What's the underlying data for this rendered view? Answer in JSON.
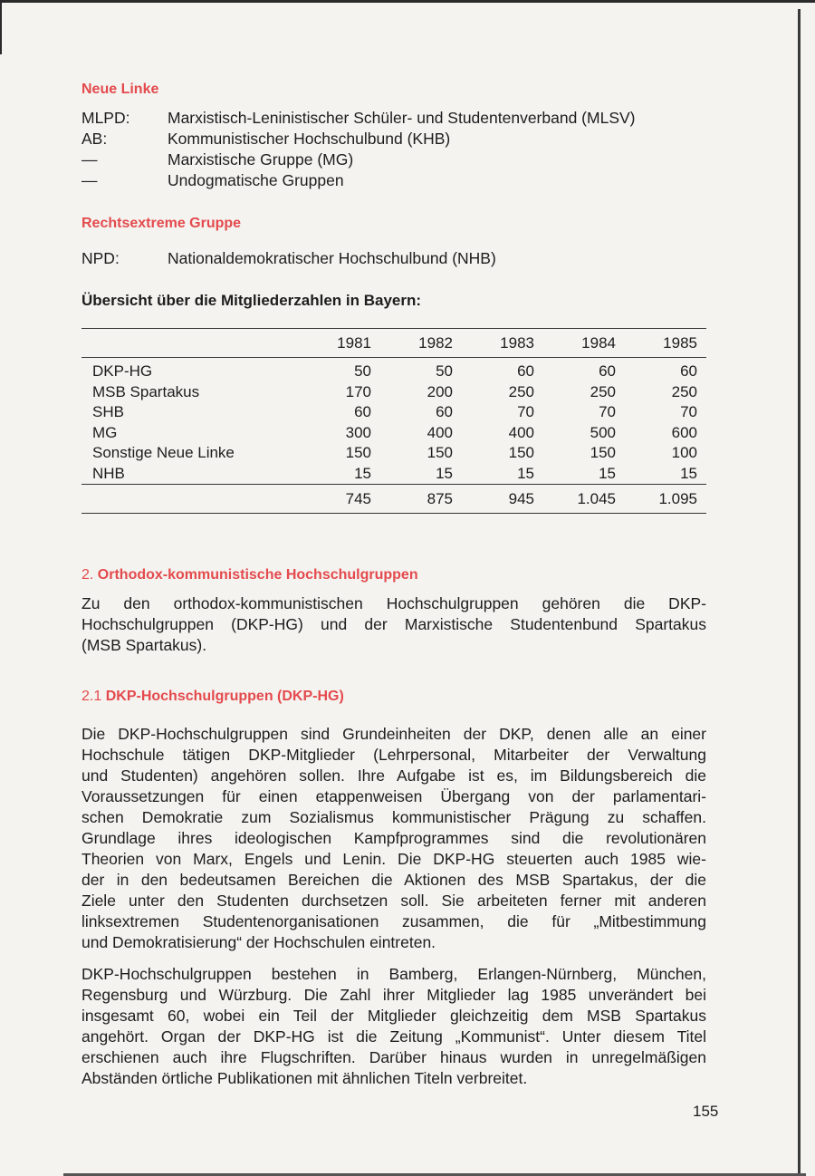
{
  "neue_linke": {
    "heading": "Neue Linke",
    "items": [
      {
        "abbr": "MLPD:",
        "name": "Marxistisch-Leninistischer Schüler- und Studentenverband (MLSV)"
      },
      {
        "abbr": "AB:",
        "name": "Kommunistischer Hochschulbund (KHB)"
      },
      {
        "abbr": "—",
        "name": "Marxistische Gruppe (MG)"
      },
      {
        "abbr": "—",
        "name": "Undogmatische Gruppen"
      }
    ]
  },
  "rechtsextreme": {
    "heading": "Rechtsextreme Gruppe",
    "items": [
      {
        "abbr": "NPD:",
        "name": "Nationaldemokratischer Hochschulbund (NHB)"
      }
    ]
  },
  "overview": {
    "title": "Übersicht über die Mitgliederzahlen in Bayern:",
    "columns": [
      "",
      "1981",
      "1982",
      "1983",
      "1984",
      "1985"
    ],
    "rows": [
      [
        "DKP-HG",
        "50",
        "50",
        "60",
        "60",
        "60"
      ],
      [
        "MSB Spartakus",
        "170",
        "200",
        "250",
        "250",
        "250"
      ],
      [
        "SHB",
        "60",
        "60",
        "70",
        "70",
        "70"
      ],
      [
        "MG",
        "300",
        "400",
        "400",
        "500",
        "600"
      ],
      [
        "Sonstige Neue Linke",
        "150",
        "150",
        "150",
        "150",
        "100"
      ],
      [
        "NHB",
        "15",
        "15",
        "15",
        "15",
        "15"
      ]
    ],
    "totals": [
      "",
      "745",
      "875",
      "945",
      "1.045",
      "1.095"
    ]
  },
  "section2": {
    "number": "2.",
    "heading": "Orthodox-kommunistische Hochschulgruppen",
    "lines": [
      "Zu den orthodox-kommunistischen Hochschulgruppen gehören die DKP-",
      "Hochschulgruppen (DKP-HG) und der Marxistische Studentenbund Spartakus",
      "(MSB Spartakus)."
    ]
  },
  "section21": {
    "number": "2.1",
    "heading": "DKP-Hochschulgruppen (DKP-HG)",
    "para1": [
      "Die DKP-Hochschulgruppen sind Grundeinheiten der DKP, denen alle an einer",
      "Hochschule tätigen DKP-Mitglieder (Lehrpersonal, Mitarbeiter der Verwaltung",
      "und Studenten) angehören sollen. Ihre Aufgabe ist es, im Bildungsbereich die",
      "Voraussetzungen für einen etappenweisen Übergang von der parlamentari-",
      "schen Demokratie zum Sozialismus kommunistischer Prägung zu schaffen.",
      "Grundlage ihres ideologischen Kampfprogrammes sind die revolutionären",
      "Theorien von Marx, Engels und Lenin. Die DKP-HG steuerten auch 1985 wie-",
      "der in den bedeutsamen Bereichen die Aktionen des MSB Spartakus, der die",
      "Ziele unter den Studenten durchsetzen soll. Sie arbeiteten ferner mit anderen",
      "linksextremen Studentenorganisationen zusammen, die für „Mitbestimmung",
      "und Demokratisierung“ der Hochschulen eintreten."
    ],
    "para2": [
      "DKP-Hochschulgruppen bestehen in Bamberg, Erlangen-Nürnberg, München,",
      "Regensburg und Würzburg. Die Zahl ihrer Mitglieder lag 1985 unverändert bei",
      "insgesamt 60, wobei ein Teil der Mitglieder gleichzeitig dem MSB Spartakus",
      "angehört. Organ der DKP-HG ist die Zeitung „Kommunist“. Unter diesem Titel",
      "erschienen auch ihre Flugschriften. Darüber hinaus wurden in unregelmäßigen",
      "Abständen örtliche Publikationen mit ähnlichen Titeln verbreitet."
    ]
  },
  "page_number": "155",
  "colors": {
    "heading_red": "#e44a4d",
    "text": "#1d1d1d",
    "paper": "#f4f3f0"
  }
}
